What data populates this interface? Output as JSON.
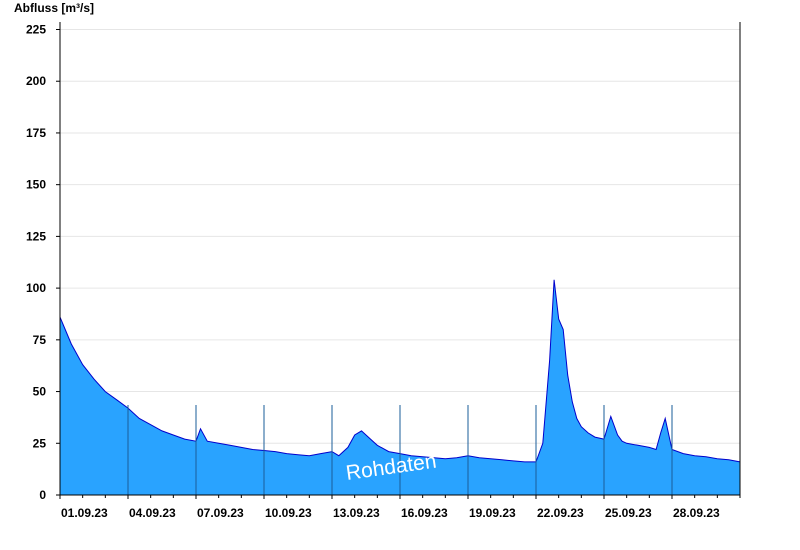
{
  "chart_data": {
    "type": "area",
    "ylabel": "Abfluss [m³/s]",
    "ylim": [
      0,
      230
    ],
    "yticks": [
      0,
      25,
      50,
      75,
      100,
      125,
      150,
      175,
      200,
      225
    ],
    "xlim": [
      "2023-09-01",
      "2023-10-01"
    ],
    "xticks": [
      "01.09.23",
      "04.09.23",
      "07.09.23",
      "10.09.23",
      "13.09.23",
      "16.09.23",
      "19.09.23",
      "22.09.23",
      "25.09.23",
      "28.09.23"
    ],
    "grid": true,
    "fill_color": "#29a3ff",
    "line_color": "#0000cc",
    "watermark": "Rohdaten",
    "series": [
      {
        "x": [
          "2023-09-01",
          "2023-09-01.5",
          "2023-09-02",
          "2023-09-02.5",
          "2023-09-03",
          "2023-09-03.5",
          "2023-09-04",
          "2023-09-04.5",
          "2023-09-05",
          "2023-09-05.5",
          "2023-09-06",
          "2023-09-06.5",
          "2023-09-07",
          "2023-09-07.2",
          "2023-09-07.5",
          "2023-09-08",
          "2023-09-08.5",
          "2023-09-09",
          "2023-09-09.5",
          "2023-09-10",
          "2023-09-10.5",
          "2023-09-11",
          "2023-09-11.5",
          "2023-09-12",
          "2023-09-12.5",
          "2023-09-13",
          "2023-09-13.3",
          "2023-09-13.7",
          "2023-09-14",
          "2023-09-14.3",
          "2023-09-14.7",
          "2023-09-15",
          "2023-09-15.5",
          "2023-09-16",
          "2023-09-16.5",
          "2023-09-17",
          "2023-09-17.5",
          "2023-09-18",
          "2023-09-18.5",
          "2023-09-19",
          "2023-09-19.5",
          "2023-09-20",
          "2023-09-20.5",
          "2023-09-21",
          "2023-09-21.5",
          "2023-09-22",
          "2023-09-22.3",
          "2023-09-22.6",
          "2023-09-22.8",
          "2023-09-23",
          "2023-09-23.2",
          "2023-09-23.4",
          "2023-09-23.6",
          "2023-09-23.8",
          "2023-09-24",
          "2023-09-24.3",
          "2023-09-24.6",
          "2023-09-25",
          "2023-09-25.3",
          "2023-09-25.6",
          "2023-09-25.8",
          "2023-09-26",
          "2023-09-26.5",
          "2023-09-27",
          "2023-09-27.3",
          "2023-09-27.5",
          "2023-09-27.7",
          "2023-09-28",
          "2023-09-28.5",
          "2023-09-29",
          "2023-09-29.5",
          "2023-09-30",
          "2023-09-30.5",
          "2023-10-01"
        ],
        "y": [
          86,
          73,
          63,
          56,
          50,
          46,
          42,
          37,
          34,
          31,
          29,
          27,
          26,
          32,
          26,
          25,
          24,
          23,
          22,
          21.5,
          21,
          20,
          19.5,
          19,
          20,
          21,
          19,
          23,
          29,
          31,
          27,
          24,
          21,
          20,
          19,
          18.5,
          18,
          17.5,
          18,
          19,
          18,
          17.5,
          17,
          16.5,
          16,
          16,
          25,
          65,
          104,
          85,
          80,
          58,
          45,
          37,
          33,
          30,
          28,
          27,
          38,
          29,
          26,
          25,
          24,
          23,
          22,
          30,
          37,
          22,
          20,
          19,
          18.5,
          17.5,
          17,
          16
        ]
      }
    ]
  }
}
